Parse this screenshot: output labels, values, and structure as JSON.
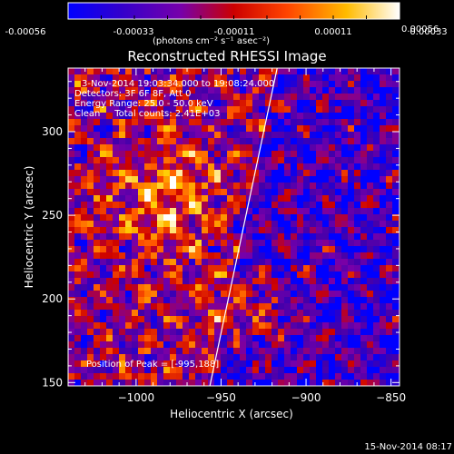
{
  "colorbar": {
    "tick_labels": [
      "-0.00056",
      "-0.00033",
      "-0.00011",
      "0.00011",
      "0.00033",
      "0.00056"
    ],
    "unit_label": "(photons cm⁻² s⁻¹ asec⁻²)",
    "colormap": [
      "#0000ff",
      "#4400aa",
      "#7700aa",
      "#cc0000",
      "#ff5500",
      "#ffcc00",
      "#ffffff"
    ]
  },
  "chart_data": {
    "type": "heatmap",
    "title": "Reconstructed RHESSI Image",
    "xlabel": "Heliocentric X (arcsec)",
    "ylabel": "Heliocentric Y (arcsec)",
    "xlim": [
      -1040,
      -845
    ],
    "ylim": [
      148,
      338
    ],
    "xticks": [
      -1000,
      -950,
      -900,
      -850
    ],
    "xtick_labels": [
      "−1000",
      "−950",
      "−900",
      "−850"
    ],
    "yticks": [
      150,
      200,
      250,
      300
    ],
    "ytick_labels": [
      "150",
      "200",
      "250",
      "300"
    ],
    "clim": [
      -0.00056,
      0.00056
    ],
    "limb_line": [
      [
        -957,
        146
      ],
      [
        -917,
        338
      ]
    ],
    "annotations": [
      "3-Nov-2014 19:03:34.000 to 19:08:24.000",
      "Detectors: 3F 6F 8F, Att 0",
      "Energy Range: 25.0 - 50.0 keV",
      "Clean     Total counts: 2.41E+03"
    ],
    "peak_label": "Position of Peak = [-995,188]",
    "peak": [
      -995,
      188
    ]
  },
  "timestamp": "15-Nov-2014 08:17"
}
